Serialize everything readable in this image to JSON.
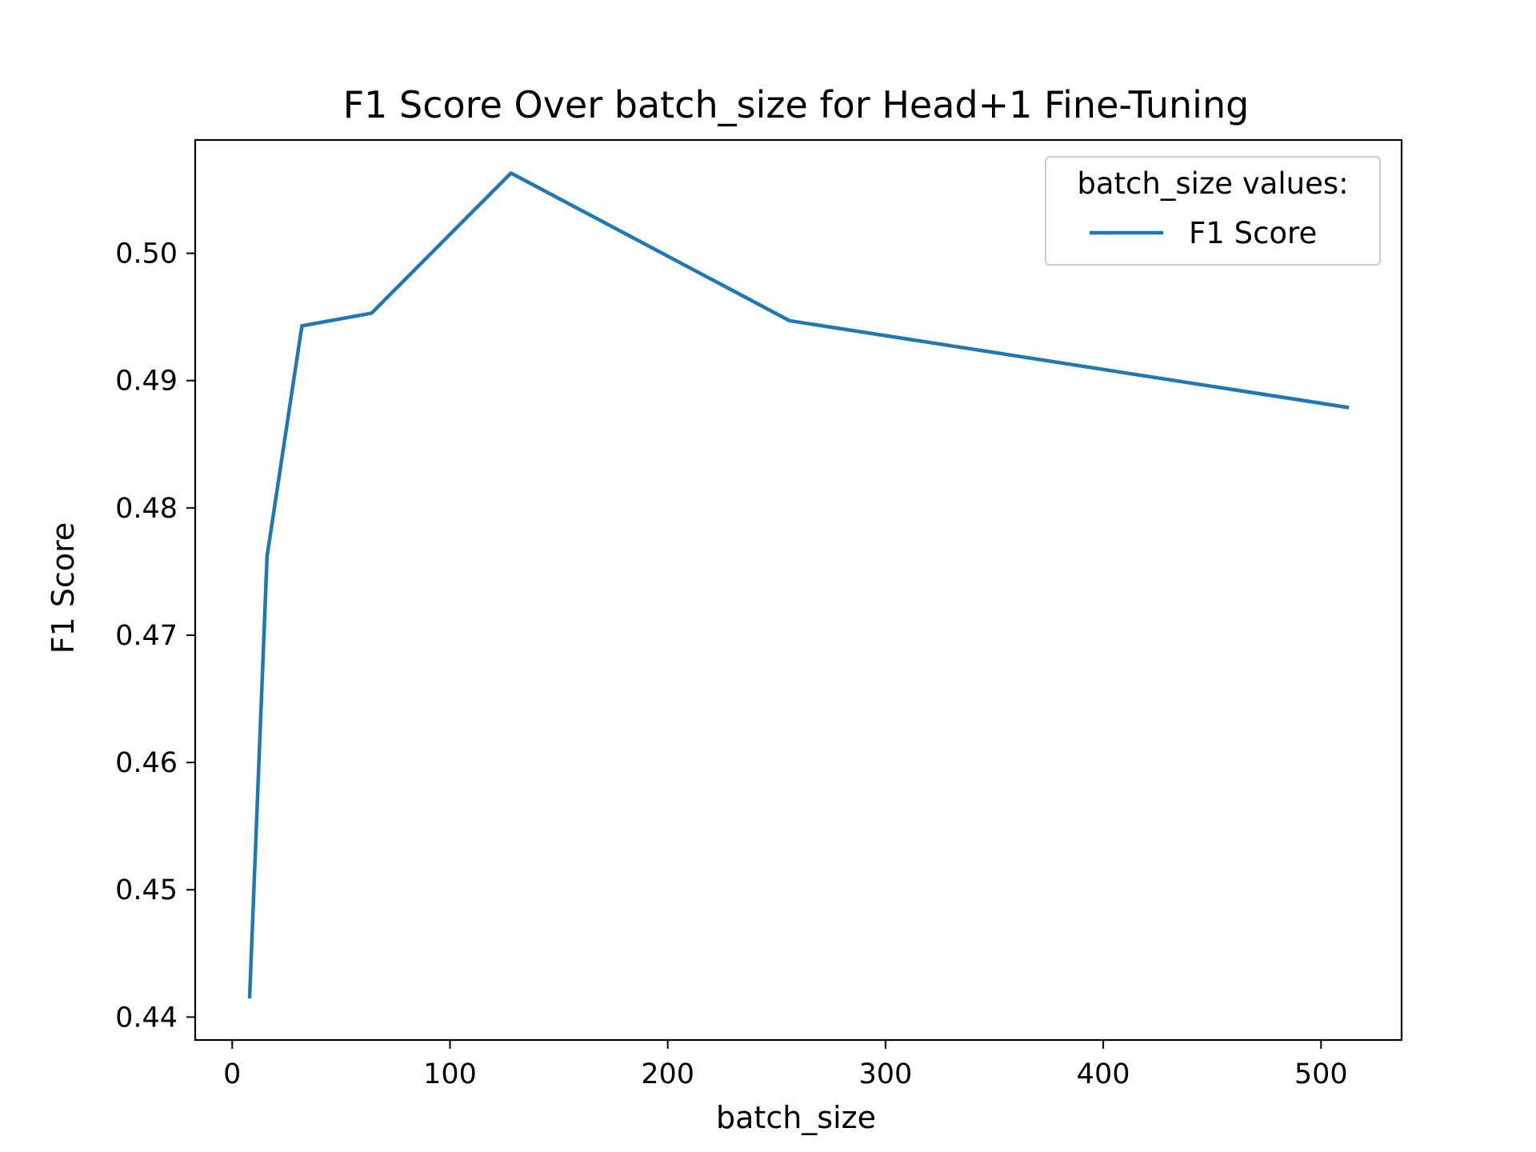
{
  "chart_data": {
    "type": "line",
    "title": "F1 Score Over batch_size for Head+1 Fine-Tuning",
    "xlabel": "batch_size",
    "ylabel": "F1 Score",
    "xlim": [
      -17,
      537
    ],
    "ylim": [
      0.4382,
      0.5089
    ],
    "xticks": [
      0,
      100,
      200,
      300,
      400,
      500
    ],
    "xtick_labels": [
      "0",
      "100",
      "200",
      "300",
      "400",
      "500"
    ],
    "yticks": [
      0.44,
      0.45,
      0.46,
      0.47,
      0.48,
      0.49,
      0.5
    ],
    "ytick_labels": [
      "0.44",
      "0.45",
      "0.46",
      "0.47",
      "0.48",
      "0.49",
      "0.50"
    ],
    "grid": false,
    "legend": {
      "title": "batch_size values:",
      "placement": "top-right"
    },
    "series": [
      {
        "name": "F1 Score",
        "color": "#1f77b4",
        "x": [
          8,
          16,
          32,
          64,
          128,
          256,
          512
        ],
        "y": [
          0.4416,
          0.4762,
          0.4943,
          0.4953,
          0.5063,
          0.4947,
          0.4879
        ]
      }
    ]
  }
}
